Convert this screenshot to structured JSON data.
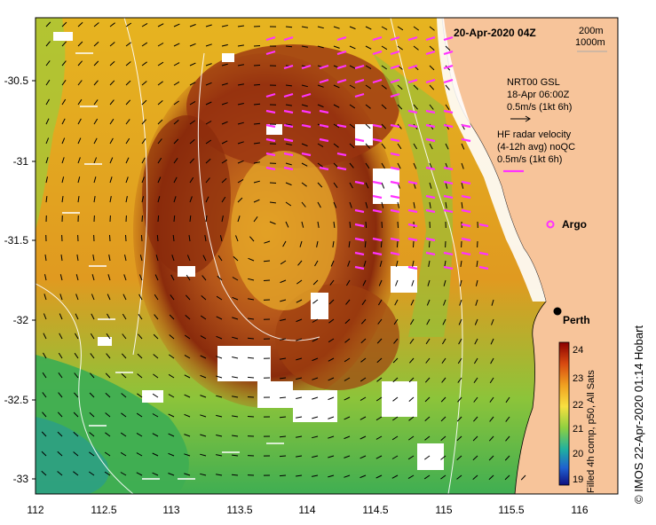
{
  "map": {
    "date_title": "20-Apr-2020 04Z",
    "legend_depths": [
      "200m",
      "1000m"
    ],
    "nrt_label": "NRT00 GSL",
    "nrt_date": "18-Apr 06:00Z",
    "nrt_scale": "0.5m/s (1kt 6h)",
    "hf_label": "HF radar velocity",
    "hf_avg": "(4-12h avg) noQC",
    "hf_scale": "0.5m/s (1kt 6h)",
    "argo_label": "Argo",
    "city_label": "Perth",
    "colorbar_title": "Filled 4h comp, p50, All Sats",
    "colorbar_ticks": [
      "24",
      "23",
      "22",
      "21",
      "20",
      "19"
    ],
    "credit": "© IMOS 22-Apr-2020 01:14 Hobart",
    "y_ticks": [
      "-30.5",
      "-31",
      "-31.5",
      "-32",
      "-32.5",
      "-33"
    ],
    "x_ticks": [
      "112",
      "112.5",
      "113",
      "113.5",
      "114",
      "114.5",
      "115",
      "115.5",
      "116"
    ],
    "colors": {
      "land": "#f7c49a",
      "warm": "#8b2a0a",
      "mid": "#e8a020",
      "cool": "#3aa84a",
      "hf_arrow": "#ff33ff"
    }
  }
}
